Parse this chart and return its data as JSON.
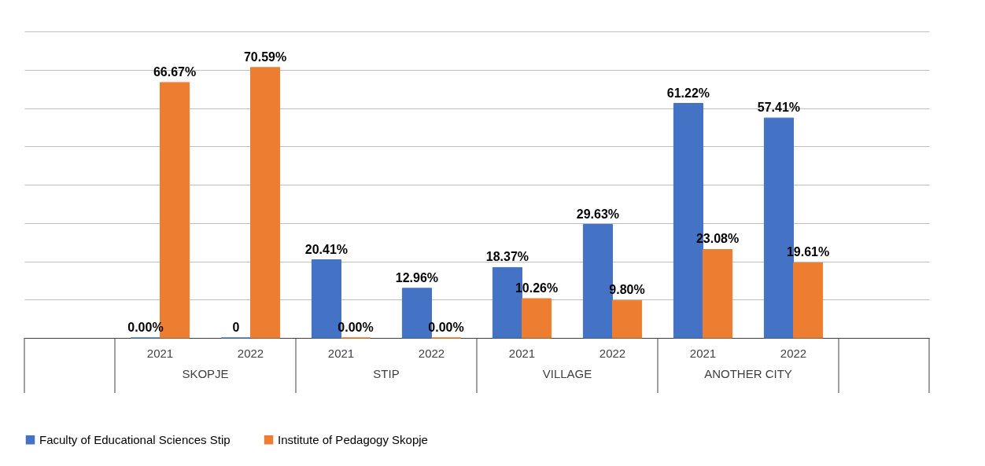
{
  "chart_data": {
    "type": "bar",
    "categories": [
      null,
      "2021",
      "2022",
      "2021",
      "2022",
      "2021",
      "2022",
      "2021",
      "2022",
      null
    ],
    "annotations": [
      "SKOPJE",
      "STIP",
      "VILLAGE",
      "ANOTHER CITY"
    ],
    "series": [
      {
        "name": "Faculty of Educational Sciences Stip",
        "color": "#4472c4",
        "values": [
          null,
          0,
          0,
          20.41,
          12.96,
          18.37,
          29.63,
          61.22,
          57.41,
          null
        ],
        "value_labels": [
          null,
          "0.00%",
          "0",
          "20.41%",
          "12.96%",
          "18.37%",
          "29.63%",
          "61.22%",
          "57.41%",
          null
        ]
      },
      {
        "name": "Institute of Pedagogy Skopje",
        "color": "#ed7d31",
        "values": [
          null,
          66.67,
          70.59,
          0,
          0,
          10.26,
          9.8,
          23.08,
          19.61,
          null
        ],
        "value_labels": [
          null,
          "66.67%",
          "70.59%",
          "0.00%",
          "0.00%",
          "10.26%",
          "9.80%",
          "23.08%",
          "19.61%",
          null
        ]
      }
    ],
    "ylim": [
      0,
      80
    ],
    "yticks": [
      {
        "value": 0,
        "label": null
      },
      {
        "value": 10,
        "label": null
      },
      {
        "value": 20,
        "label": null
      },
      {
        "value": 30,
        "label": null
      },
      {
        "value": 40,
        "label": null
      },
      {
        "value": 50,
        "label": null
      },
      {
        "value": 60,
        "label": null
      },
      {
        "value": 70,
        "label": null
      },
      {
        "value": 80,
        "label": null
      }
    ],
    "grid": "y",
    "legend": "bottom"
  }
}
